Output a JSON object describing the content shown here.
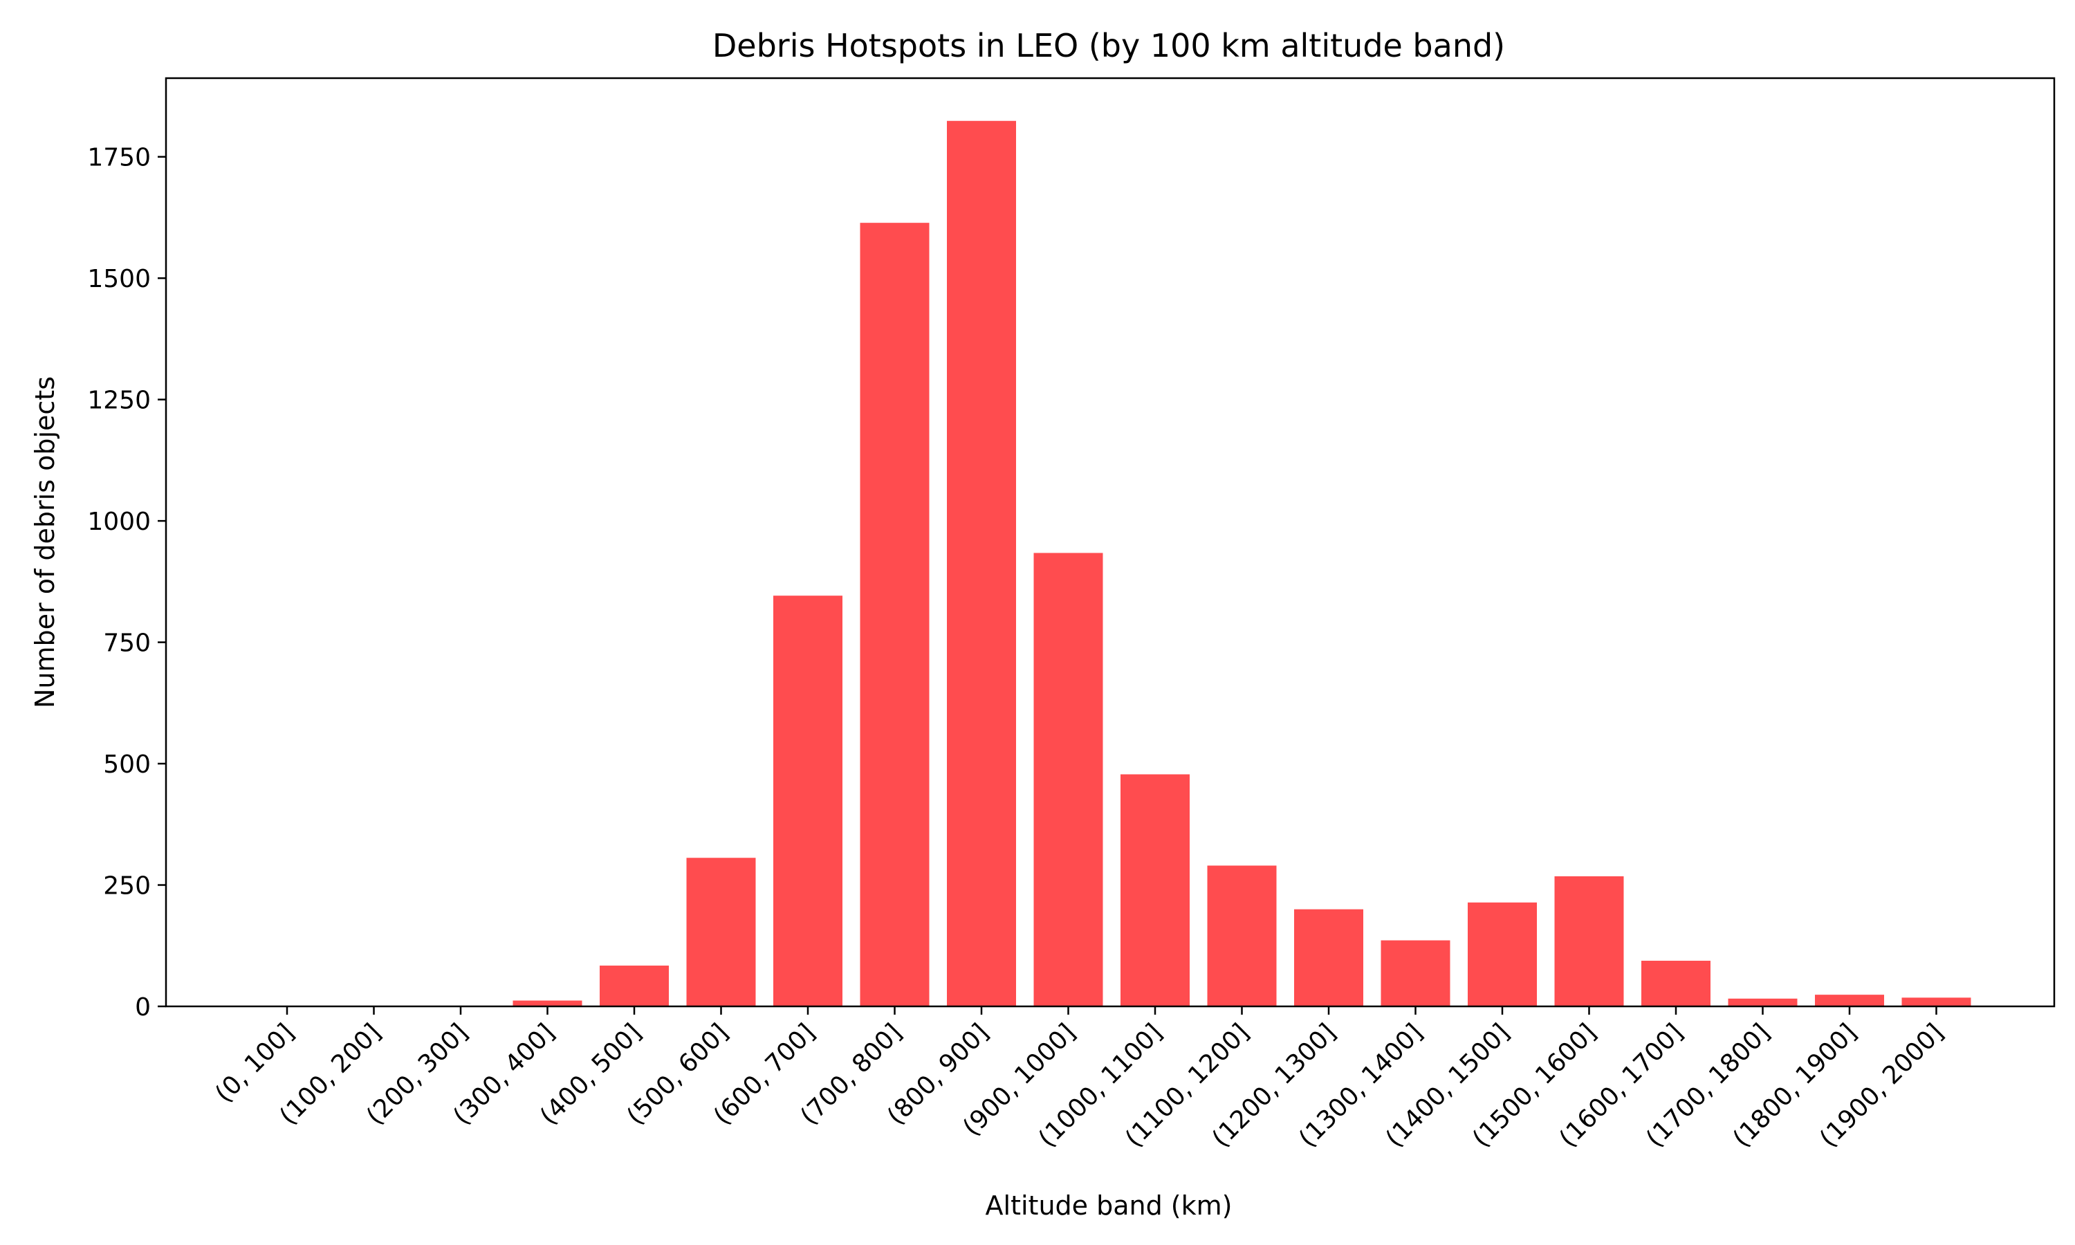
{
  "chart_data": {
    "type": "bar",
    "title": "Debris Hotspots in LEO (by 100 km altitude band)",
    "xlabel": "Altitude band (km)",
    "ylabel": "Number of debris objects",
    "categories": [
      "(0, 100]",
      "(100, 200]",
      "(200, 300]",
      "(300, 400]",
      "(400, 500]",
      "(500, 600]",
      "(600, 700]",
      "(700, 800]",
      "(800, 900]",
      "(900, 1000]",
      "(1000, 1100]",
      "(1100, 1200]",
      "(1200, 1300]",
      "(1300, 1400]",
      "(1400, 1500]",
      "(1500, 1600]",
      "(1600, 1700]",
      "(1700, 1800]",
      "(1800, 1900]",
      "(1900, 2000]"
    ],
    "values": [
      0,
      0,
      0,
      12,
      84,
      306,
      846,
      1614,
      1824,
      934,
      478,
      290,
      200,
      136,
      214,
      268,
      94,
      16,
      24,
      18
    ],
    "ylim": [
      0,
      1912
    ],
    "yticks": [
      0,
      250,
      500,
      750,
      1000,
      1250,
      1500,
      1750
    ],
    "bar_color": "#ff4c4f",
    "grid": false,
    "legend": "none"
  }
}
